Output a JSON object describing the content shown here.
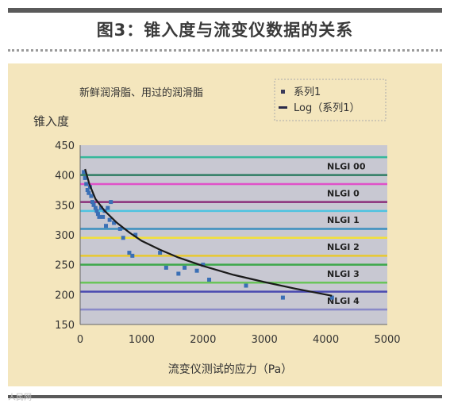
{
  "figure": {
    "title": "图3：锥入度与流变仪数据的关系",
    "watermark": "人民网"
  },
  "colors": {
    "panel_bg": "#f4e6bd",
    "plot_bg": "#c8c8d2",
    "point": "#3a6fb5",
    "trend": "#1a1a1a"
  },
  "chart_data": {
    "type": "scatter",
    "subtitle": "新鲜润滑脂、用过的润滑脂",
    "ylabel": "锥入度",
    "xlabel": "流变仪测试的应力（Pa）",
    "xlim": [
      0,
      5000
    ],
    "ylim": [
      150,
      450
    ],
    "x_ticks": [
      "0",
      "1000",
      "2000",
      "3000",
      "4000",
      "5000"
    ],
    "y_ticks": [
      "150",
      "200",
      "250",
      "300",
      "350",
      "400",
      "450"
    ],
    "legend": {
      "position": "top-right",
      "entries": [
        "系列1",
        "Log（系列1）"
      ]
    },
    "nlgi_bands": [
      {
        "label": "NLGI 00",
        "upper": 430,
        "lower": 400,
        "upper_color": "#35b89a",
        "lower_color": "#2f7d63"
      },
      {
        "label": "NLGI 0",
        "upper": 385,
        "lower": 355,
        "upper_color": "#e050c8",
        "lower_color": "#8a2f7a"
      },
      {
        "label": "NLGI 1",
        "upper": 340,
        "lower": 310,
        "upper_color": "#4fc3e0",
        "lower_color": "#3a8fbf"
      },
      {
        "label": "NLGI 2",
        "upper": 295,
        "lower": 265,
        "upper_color": "#f2e03a",
        "lower_color": "#e8c830"
      },
      {
        "label": "NLGI 3",
        "upper": 250,
        "lower": 220,
        "upper_color": "#3da84a",
        "lower_color": "#6ac45a"
      },
      {
        "label": "NLGI 4",
        "upper": 205,
        "lower": 175,
        "upper_color": "#4a4ab0",
        "lower_color": "#8a8ac8"
      }
    ],
    "series": [
      {
        "name": "系列1",
        "x": [
          60,
          80,
          100,
          120,
          140,
          160,
          180,
          200,
          220,
          250,
          270,
          290,
          310,
          340,
          370,
          400,
          420,
          450,
          480,
          500,
          550,
          650,
          700,
          800,
          850,
          900,
          1300,
          1400,
          1600,
          1700,
          1900,
          2000,
          2100,
          2700,
          3300,
          4100
        ],
        "y": [
          405,
          395,
          385,
          375,
          370,
          380,
          365,
          355,
          350,
          345,
          340,
          335,
          330,
          345,
          330,
          340,
          315,
          345,
          325,
          355,
          320,
          310,
          295,
          270,
          265,
          300,
          270,
          245,
          235,
          245,
          240,
          250,
          225,
          215,
          195,
          195
        ]
      },
      {
        "name": "Log（系列1）",
        "x": [
          80,
          150,
          250,
          400,
          600,
          800,
          1000,
          1300,
          1600,
          2000,
          2500,
          3000,
          3500,
          4000,
          4100
        ],
        "y": [
          410,
          385,
          360,
          340,
          320,
          304,
          290,
          275,
          262,
          248,
          233,
          221,
          210,
          200,
          198
        ]
      }
    ]
  }
}
